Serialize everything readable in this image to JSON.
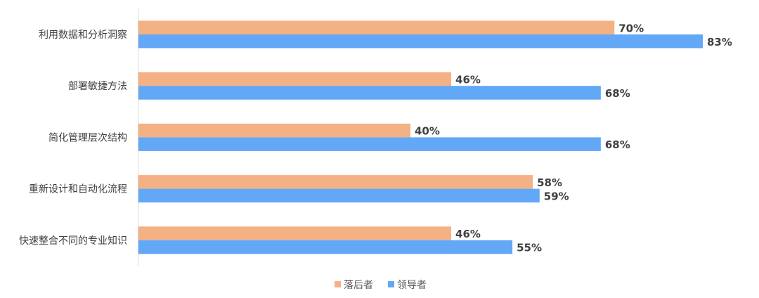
{
  "chart_data": {
    "type": "bar",
    "orientation": "horizontal",
    "title": "",
    "xlabel": "",
    "ylabel": "",
    "xlim": [
      0,
      100
    ],
    "grid": false,
    "legend_position": "bottom",
    "categories": [
      "利用数据和分析洞察",
      "部署敏捷方法",
      "简化管理层次结构",
      "重新设计和自动化流程",
      "快速整合不同的专业知识"
    ],
    "series": [
      {
        "name": "落后者",
        "color": "#F4B183",
        "values": [
          70,
          46,
          40,
          58,
          46
        ],
        "labels": [
          "70%",
          "46%",
          "40%",
          "58%",
          "46%"
        ]
      },
      {
        "name": "领导者",
        "color": "#62A8F7",
        "values": [
          83,
          68,
          68,
          59,
          55
        ],
        "labels": [
          "83%",
          "68%",
          "68%",
          "59%",
          "55%"
        ]
      }
    ]
  }
}
